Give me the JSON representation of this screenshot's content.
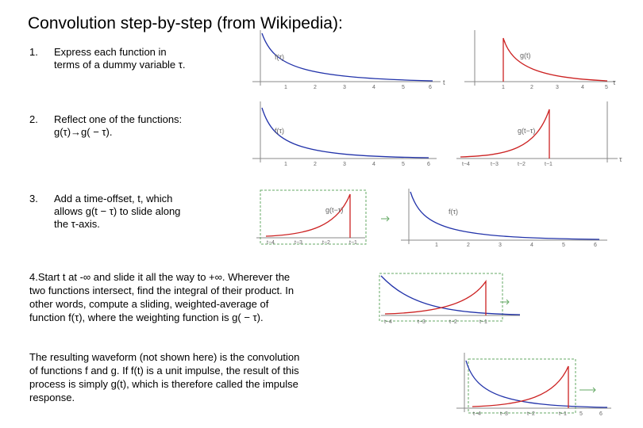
{
  "title": "Convolution step-by-step (from Wikipedia):",
  "steps": [
    {
      "number": "1.",
      "line1": "Express each function in",
      "line2": "terms of a dummy variable τ."
    },
    {
      "number": "2.",
      "line1": "Reflect one of the functions:",
      "line2": "g(τ)→g( − τ)."
    },
    {
      "number": "3.",
      "line1": "Add a time-offset, t, which",
      "line2": "allows g(t − τ) to slide along",
      "line3": "the τ-axis."
    }
  ],
  "step4": {
    "line1": "4.Start t at -∞ and slide it all the way to +∞. Wherever the",
    "line2": "two functions intersect, find the integral of their product. In",
    "line3": "other words, compute a sliding, weighted-average of",
    "line4": "function f(τ), where the weighting function is g( − τ)."
  },
  "result": {
    "line1": "The resulting waveform (not shown here) is the convolution",
    "line2": "of functions f and g. If f(t) is a unit impulse, the result of this",
    "line3": "process is simply g(t), which is therefore called the impulse",
    "line4": "response."
  },
  "plots": {
    "p1": {
      "curve_label": "f(τ)",
      "axis_label": "t",
      "ticks": [
        "1",
        "2",
        "3",
        "4",
        "5",
        "6"
      ]
    },
    "p2": {
      "curve_label": "g(t)",
      "axis_label": "τ",
      "ticks": [
        "1",
        "2",
        "3",
        "4",
        "5"
      ]
    },
    "p3": {
      "curve_label": "f(τ)",
      "ticks": [
        "1",
        "2",
        "3",
        "4",
        "5",
        "6"
      ]
    },
    "p4": {
      "curve_label": "g(t−τ)",
      "axis_label": "τ",
      "ticks": [
        "t−4",
        "t−3",
        "t−2",
        "t−1"
      ]
    },
    "p5": {
      "curve_label": "g(t−τ)",
      "ticks": [
        "t−4",
        "t−3",
        "t−2",
        "t−1"
      ]
    },
    "p6": {
      "curve_label": "f(τ)",
      "ticks": [
        "1",
        "2",
        "3",
        "4",
        "5",
        "6"
      ]
    },
    "p7": {
      "ticks": [
        "t−4",
        "t−3",
        "t−2",
        "t−1"
      ]
    },
    "p8": {
      "ticks": [
        "t−4",
        "t−3",
        "t−2",
        "t−1",
        "5",
        "6"
      ]
    }
  },
  "colors": {
    "f_curve": "#2233aa",
    "g_curve": "#cc2222",
    "frame": "#66aa66",
    "axis": "#888888"
  }
}
